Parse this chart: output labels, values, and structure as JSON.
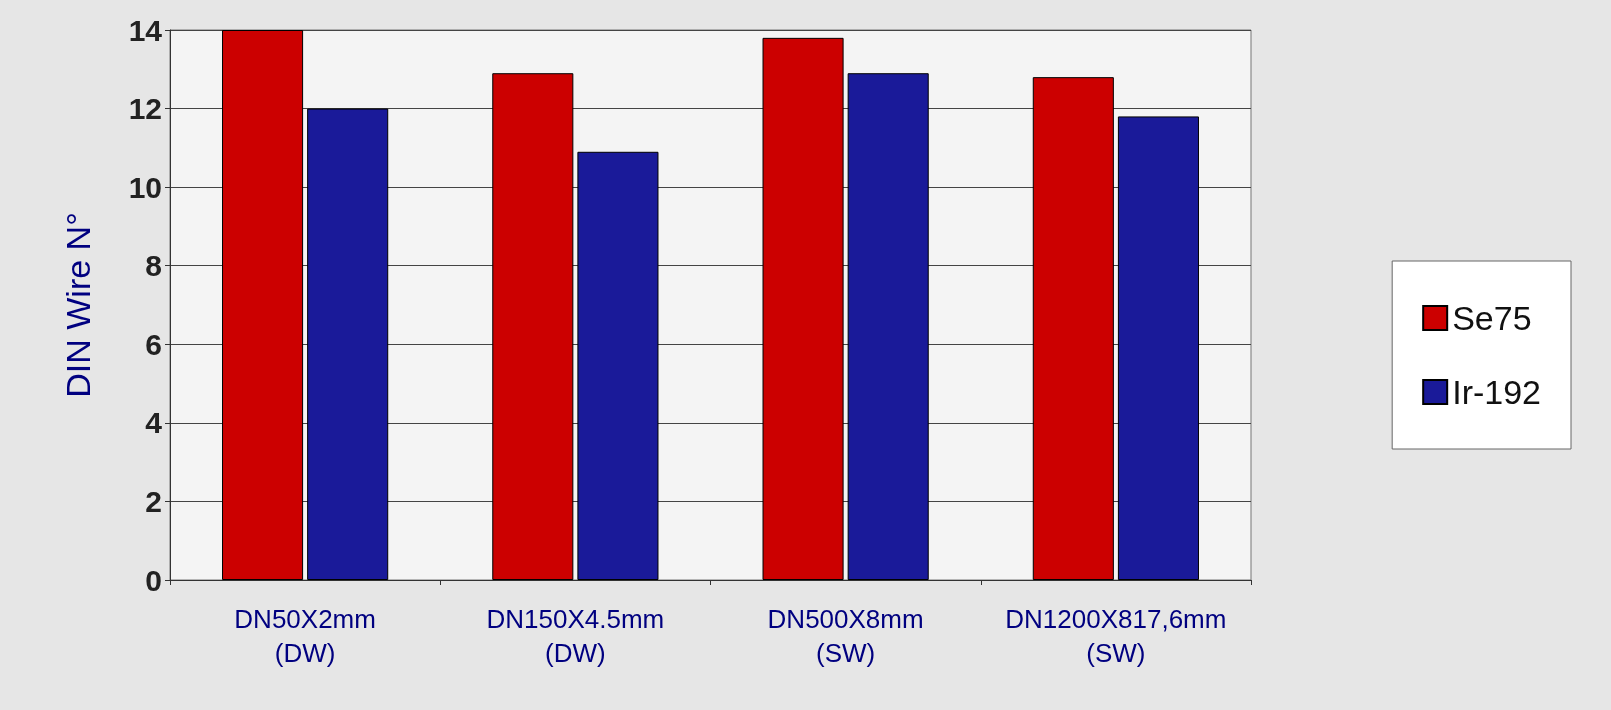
{
  "chart_data": {
    "type": "bar",
    "ylabel": "DIN Wire N°",
    "categories": [
      "DN50X2mm\n(DW)",
      "DN150X4.5mm\n(DW)",
      "DN500X8mm\n(SW)",
      "DN1200X817,6mm\n(SW)"
    ],
    "series": [
      {
        "name": "Se75",
        "color": "#cc0000",
        "values": [
          14,
          12.9,
          13.8,
          12.8
        ]
      },
      {
        "name": "Ir-192",
        "color": "#1a1a99",
        "values": [
          12,
          10.9,
          12.9,
          11.8
        ]
      }
    ],
    "ylim": [
      0,
      14
    ],
    "yticks": [
      0,
      2,
      4,
      6,
      8,
      10,
      12,
      14
    ],
    "grid": "y",
    "legend": "right"
  }
}
